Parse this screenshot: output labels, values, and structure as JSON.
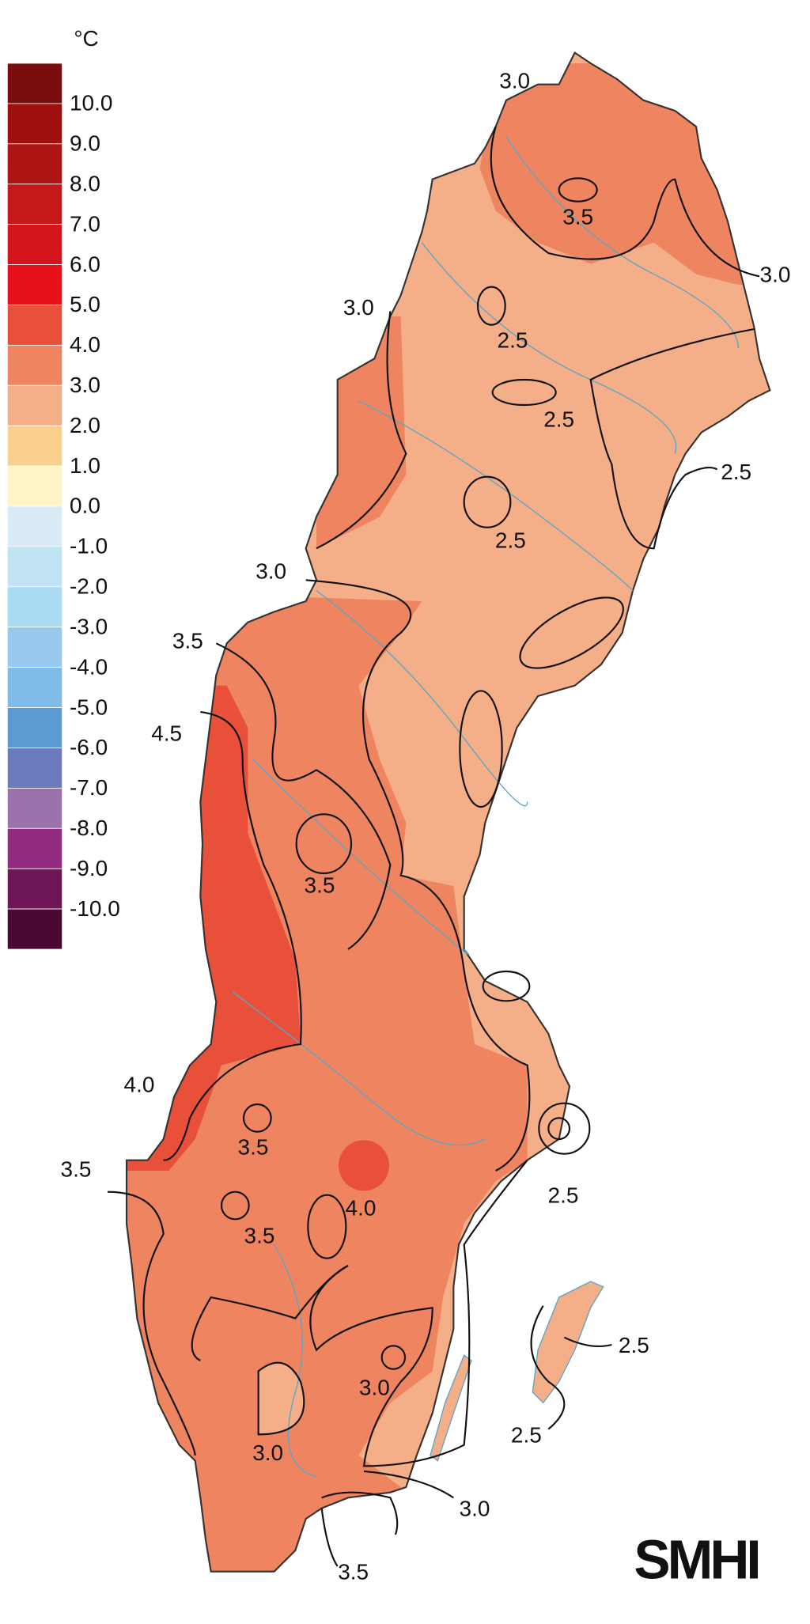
{
  "legend": {
    "unit": "°C",
    "items": [
      {
        "label": null,
        "color": "#7a0d0d"
      },
      {
        "label": "10.0",
        "color": "#9e1010"
      },
      {
        "label": "9.0",
        "color": "#b01515"
      },
      {
        "label": "8.0",
        "color": "#c51818"
      },
      {
        "label": "7.0",
        "color": "#d4151c"
      },
      {
        "label": "6.0",
        "color": "#e5101a"
      },
      {
        "label": "5.0",
        "color": "#e8503a"
      },
      {
        "label": "4.0",
        "color": "#ee8460"
      },
      {
        "label": "3.0",
        "color": "#f4ae88"
      },
      {
        "label": "2.0",
        "color": "#f9d08c"
      },
      {
        "label": "1.0",
        "color": "#fef4c8"
      },
      {
        "label": "0.0",
        "color": "#d8ebf7"
      },
      {
        "label": "-1.0",
        "color": "#c0e4f4"
      },
      {
        "label": "-2.0",
        "color": "#a8daf2"
      },
      {
        "label": "-3.0",
        "color": "#98c8ee"
      },
      {
        "label": "-4.0",
        "color": "#80bce8"
      },
      {
        "label": "-5.0",
        "color": "#5c9ad4"
      },
      {
        "label": "-6.0",
        "color": "#6a7abc"
      },
      {
        "label": "-7.0",
        "color": "#9a72ac"
      },
      {
        "label": "-8.0",
        "color": "#922c80"
      },
      {
        "label": "-9.0",
        "color": "#6e1656"
      },
      {
        "label": "-10.0",
        "color": "#4a0835"
      }
    ]
  },
  "contour_labels": [
    "3.0",
    "3.5",
    "3.0",
    "3.0",
    "2.5",
    "2.5",
    "2.5",
    "2.5",
    "3.0",
    "3.5",
    "4.5",
    "3.5",
    "4.0",
    "3.5",
    "3.5",
    "4.0",
    "3.5",
    "2.5",
    "2.5",
    "3.0",
    "2.5",
    "3.0",
    "3.0",
    "3.5"
  ],
  "logo": "SMHI"
}
